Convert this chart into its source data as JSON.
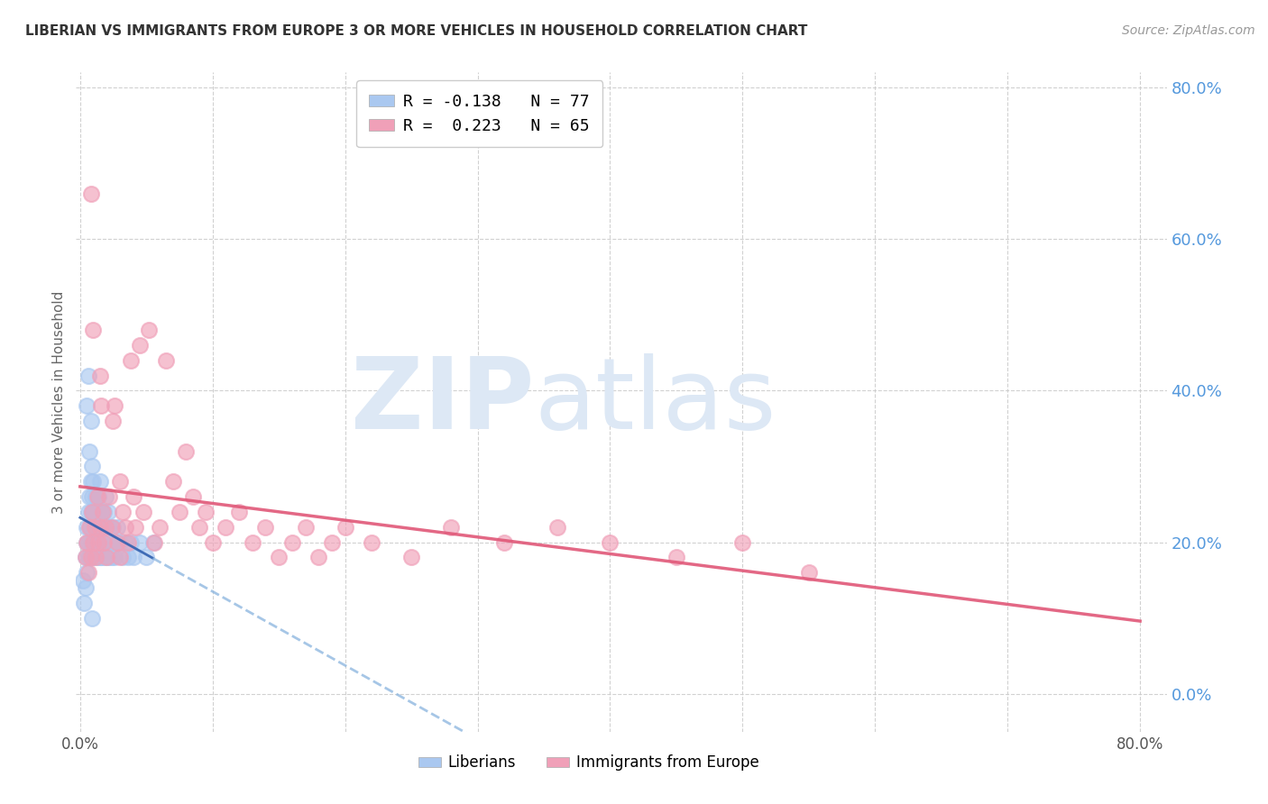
{
  "title": "LIBERIAN VS IMMIGRANTS FROM EUROPE 3 OR MORE VEHICLES IN HOUSEHOLD CORRELATION CHART",
  "source": "Source: ZipAtlas.com",
  "ylabel": "3 or more Vehicles in Household",
  "xlabel": "",
  "right_yticks": [
    0.0,
    0.2,
    0.4,
    0.6,
    0.8
  ],
  "right_yticklabels": [
    "0.0%",
    "20.0%",
    "40.0%",
    "60.0%",
    "80.0%"
  ],
  "xlim": [
    -0.003,
    0.82
  ],
  "ylim": [
    -0.05,
    0.82
  ],
  "liberian_R": -0.138,
  "liberian_N": 77,
  "europe_R": 0.223,
  "europe_N": 65,
  "liberian_color": "#aac8f0",
  "europe_color": "#f0a0b8",
  "liberian_line_color": "#3060b0",
  "liberian_line_dash_color": "#90b8e0",
  "europe_line_color": "#e05878",
  "watermark_ZIP": "ZIP",
  "watermark_atlas": "atlas",
  "watermark_color": "#dde8f5",
  "legend_label_1": "R = -0.138   N = 77",
  "legend_label_2": "R =  0.223   N = 65",
  "legend_label_liberian": "Liberians",
  "legend_label_europe": "Immigrants from Europe",
  "background_color": "#ffffff",
  "title_color": "#333333",
  "right_axis_color": "#5599dd",
  "grid_color": "#cccccc",
  "liberian_x": [
    0.002,
    0.003,
    0.004,
    0.004,
    0.005,
    0.005,
    0.005,
    0.006,
    0.006,
    0.006,
    0.007,
    0.007,
    0.007,
    0.008,
    0.008,
    0.008,
    0.008,
    0.009,
    0.009,
    0.009,
    0.009,
    0.01,
    0.01,
    0.01,
    0.01,
    0.011,
    0.011,
    0.011,
    0.012,
    0.012,
    0.012,
    0.013,
    0.013,
    0.013,
    0.014,
    0.014,
    0.014,
    0.015,
    0.015,
    0.015,
    0.016,
    0.016,
    0.016,
    0.017,
    0.017,
    0.018,
    0.018,
    0.018,
    0.019,
    0.019,
    0.02,
    0.02,
    0.021,
    0.021,
    0.022,
    0.022,
    0.023,
    0.024,
    0.025,
    0.025,
    0.026,
    0.027,
    0.028,
    0.03,
    0.032,
    0.034,
    0.036,
    0.038,
    0.04,
    0.045,
    0.05,
    0.055,
    0.006,
    0.008,
    0.005,
    0.007,
    0.009
  ],
  "liberian_y": [
    0.15,
    0.12,
    0.18,
    0.14,
    0.2,
    0.16,
    0.22,
    0.18,
    0.24,
    0.2,
    0.26,
    0.22,
    0.18,
    0.28,
    0.24,
    0.2,
    0.22,
    0.3,
    0.26,
    0.22,
    0.18,
    0.24,
    0.2,
    0.22,
    0.28,
    0.24,
    0.2,
    0.18,
    0.22,
    0.26,
    0.2,
    0.24,
    0.18,
    0.22,
    0.26,
    0.2,
    0.24,
    0.18,
    0.22,
    0.28,
    0.2,
    0.24,
    0.18,
    0.22,
    0.2,
    0.24,
    0.18,
    0.22,
    0.2,
    0.26,
    0.22,
    0.18,
    0.2,
    0.24,
    0.18,
    0.22,
    0.2,
    0.18,
    0.22,
    0.2,
    0.18,
    0.2,
    0.22,
    0.2,
    0.18,
    0.2,
    0.18,
    0.2,
    0.18,
    0.2,
    0.18,
    0.2,
    0.42,
    0.36,
    0.38,
    0.32,
    0.1
  ],
  "europe_x": [
    0.004,
    0.005,
    0.006,
    0.007,
    0.008,
    0.009,
    0.01,
    0.011,
    0.012,
    0.013,
    0.014,
    0.015,
    0.016,
    0.017,
    0.018,
    0.019,
    0.02,
    0.022,
    0.024,
    0.026,
    0.028,
    0.03,
    0.032,
    0.034,
    0.036,
    0.038,
    0.04,
    0.042,
    0.045,
    0.048,
    0.052,
    0.056,
    0.06,
    0.065,
    0.07,
    0.075,
    0.08,
    0.085,
    0.09,
    0.095,
    0.1,
    0.11,
    0.12,
    0.13,
    0.14,
    0.15,
    0.16,
    0.17,
    0.18,
    0.19,
    0.2,
    0.22,
    0.25,
    0.28,
    0.32,
    0.36,
    0.4,
    0.45,
    0.5,
    0.55,
    0.008,
    0.01,
    0.015,
    0.025,
    0.03
  ],
  "europe_y": [
    0.18,
    0.2,
    0.16,
    0.22,
    0.18,
    0.24,
    0.2,
    0.22,
    0.18,
    0.26,
    0.2,
    0.22,
    0.38,
    0.24,
    0.2,
    0.22,
    0.18,
    0.26,
    0.22,
    0.38,
    0.2,
    0.28,
    0.24,
    0.22,
    0.2,
    0.44,
    0.26,
    0.22,
    0.46,
    0.24,
    0.48,
    0.2,
    0.22,
    0.44,
    0.28,
    0.24,
    0.32,
    0.26,
    0.22,
    0.24,
    0.2,
    0.22,
    0.24,
    0.2,
    0.22,
    0.18,
    0.2,
    0.22,
    0.18,
    0.2,
    0.22,
    0.2,
    0.18,
    0.22,
    0.2,
    0.22,
    0.2,
    0.18,
    0.2,
    0.16,
    0.66,
    0.48,
    0.42,
    0.36,
    0.18
  ]
}
